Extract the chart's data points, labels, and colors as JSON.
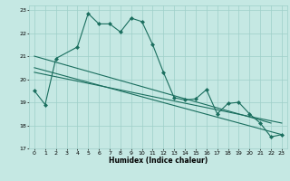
{
  "xlabel": "Humidex (Indice chaleur)",
  "xlim": [
    -0.5,
    23.5
  ],
  "ylim": [
    17,
    23.2
  ],
  "yticks": [
    17,
    18,
    19,
    20,
    21,
    22,
    23
  ],
  "xticks": [
    0,
    1,
    2,
    3,
    4,
    5,
    6,
    7,
    8,
    9,
    10,
    11,
    12,
    13,
    14,
    15,
    16,
    17,
    18,
    19,
    20,
    21,
    22,
    23
  ],
  "bg_color": "#c5e8e3",
  "grid_color": "#9ecfc8",
  "line_color": "#1a6e5e",
  "series1_x": [
    0,
    1,
    2,
    4,
    5,
    6,
    7,
    8,
    9,
    10,
    11,
    12,
    13,
    14,
    15,
    16,
    17,
    18,
    19,
    20,
    21,
    22,
    23
  ],
  "series1_y": [
    19.5,
    18.9,
    20.9,
    21.4,
    22.85,
    22.4,
    22.4,
    22.05,
    22.65,
    22.5,
    21.5,
    20.3,
    19.2,
    19.1,
    19.15,
    19.55,
    18.5,
    18.95,
    19.0,
    18.5,
    18.1,
    17.5,
    17.6
  ],
  "line1_x": [
    0,
    22
  ],
  "line1_y": [
    21.0,
    18.1
  ],
  "line2_x": [
    0,
    23
  ],
  "line2_y": [
    20.5,
    17.6
  ],
  "line3_x": [
    0,
    23
  ],
  "line3_y": [
    20.3,
    18.1
  ]
}
